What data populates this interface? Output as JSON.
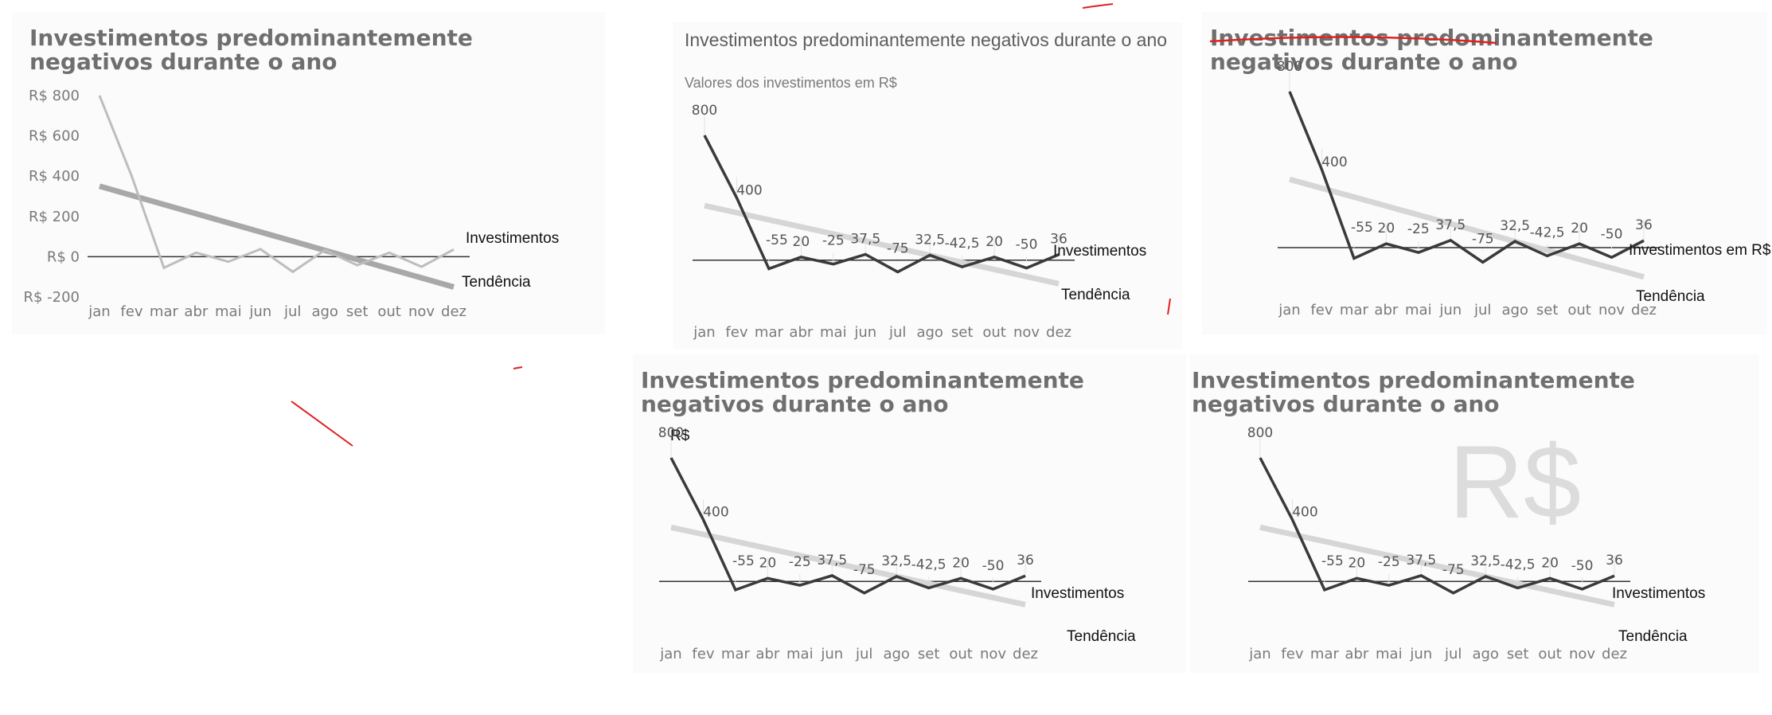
{
  "chart_data": [
    {
      "type": "line",
      "title": "Investimentos predominantemente negativos durante o ano",
      "subtitle": "",
      "categories": [
        "jan",
        "fev",
        "mar",
        "abr",
        "mai",
        "jun",
        "jul",
        "ago",
        "set",
        "out",
        "nov",
        "dez"
      ],
      "series": [
        {
          "name": "Investimentos",
          "values": [
            800,
            400,
            -55,
            20,
            -25,
            37.5,
            -75,
            32.5,
            -42.5,
            20,
            -50,
            36
          ]
        },
        {
          "name": "Tendência",
          "values": [
            350,
            304.5,
            259,
            213.5,
            168,
            122.5,
            77,
            31.5,
            -14,
            -59.5,
            -105,
            -150.5
          ]
        }
      ],
      "ylim": [
        -200,
        800
      ],
      "yticks": [
        "R$ 800",
        "R$ 600",
        "R$ 400",
        "R$ 200",
        "R$ 0",
        "R$ -200"
      ],
      "data_labels": false,
      "grid": false
    },
    {
      "type": "line",
      "title": "Investimentos predominantemente negativos durante o ano",
      "subtitle": "Valores dos investimentos em R$",
      "categories": [
        "jan",
        "fev",
        "mar",
        "abr",
        "mai",
        "jun",
        "jul",
        "ago",
        "set",
        "out",
        "nov",
        "dez"
      ],
      "series": [
        {
          "name": "Investimentos",
          "values": [
            800,
            400,
            -55,
            20,
            -25,
            37.5,
            -75,
            32.5,
            -42.5,
            20,
            -50,
            36
          ]
        },
        {
          "name": "Tendência",
          "values": [
            350,
            304.5,
            259,
            213.5,
            168,
            122.5,
            77,
            31.5,
            -14,
            -59.5,
            -105,
            -150.5
          ]
        }
      ],
      "data_labels": [
        "800",
        "400",
        "-55",
        "20",
        "-25",
        "37,5",
        "-75",
        "32,5",
        "-42,5",
        "20",
        "-50",
        "36"
      ],
      "grid": false
    },
    {
      "type": "line",
      "title": "Investimentos predominantemente negativos durante o ano",
      "subtitle": "",
      "categories": [
        "jan",
        "fev",
        "mar",
        "abr",
        "mai",
        "jun",
        "jul",
        "ago",
        "set",
        "out",
        "nov",
        "dez"
      ],
      "series": [
        {
          "name": "Investimentos em R$",
          "values": [
            800,
            400,
            -55,
            20,
            -25,
            37.5,
            -75,
            32.5,
            -42.5,
            20,
            -50,
            36
          ]
        },
        {
          "name": "Tendência",
          "values": [
            350,
            304.5,
            259,
            213.5,
            168,
            122.5,
            77,
            31.5,
            -14,
            -59.5,
            -105,
            -150.5
          ]
        }
      ],
      "data_labels": [
        "800",
        "400",
        "-55",
        "20",
        "-25",
        "37,5",
        "-75",
        "32,5",
        "-42,5",
        "20",
        "-50",
        "36"
      ],
      "title_strikethrough": true,
      "grid": false
    },
    {
      "type": "line",
      "title": "Investimentos predominantemente negativos durante o ano",
      "subtitle": "",
      "unit_label": "R$",
      "categories": [
        "jan",
        "fev",
        "mar",
        "abr",
        "mai",
        "jun",
        "jul",
        "ago",
        "set",
        "out",
        "nov",
        "dez"
      ],
      "series": [
        {
          "name": "Investimentos",
          "values": [
            800,
            400,
            -55,
            20,
            -25,
            37.5,
            -75,
            32.5,
            -42.5,
            20,
            -50,
            36
          ]
        },
        {
          "name": "Tendência",
          "values": [
            350,
            304.5,
            259,
            213.5,
            168,
            122.5,
            77,
            31.5,
            -14,
            -59.5,
            -105,
            -150.5
          ]
        }
      ],
      "data_labels": [
        "800",
        "400",
        "-55",
        "20",
        "-25",
        "37,5",
        "-75",
        "32,5",
        "-42,5",
        "20",
        "-50",
        "36"
      ],
      "grid": false
    },
    {
      "type": "line",
      "title": "Investimentos predominantemente negativos durante o ano",
      "subtitle": "",
      "watermark": "R$",
      "categories": [
        "jan",
        "fev",
        "mar",
        "abr",
        "mai",
        "jun",
        "jul",
        "ago",
        "set",
        "out",
        "nov",
        "dez"
      ],
      "series": [
        {
          "name": "Investimentos",
          "values": [
            800,
            400,
            -55,
            20,
            -25,
            37.5,
            -75,
            32.5,
            -42.5,
            20,
            -50,
            36
          ]
        },
        {
          "name": "Tendência",
          "values": [
            350,
            304.5,
            259,
            213.5,
            168,
            122.5,
            77,
            31.5,
            -14,
            -59.5,
            -105,
            -150.5
          ]
        }
      ],
      "data_labels": [
        "800",
        "400",
        "-55",
        "20",
        "-25",
        "37,5",
        "-75",
        "32,5",
        "-42,5",
        "20",
        "-50",
        "36"
      ],
      "grid": false
    }
  ],
  "colors": {
    "investimentos_primary": "#3a3a3a",
    "investimentos_light": "#bdbdbd",
    "tendencia_light": "#d6d6d6",
    "tendencia_mid": "#a8a8a8",
    "zero_line": "#333333",
    "annotation": "#e02020"
  }
}
